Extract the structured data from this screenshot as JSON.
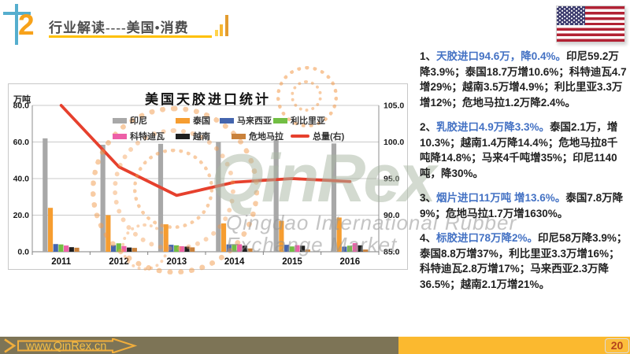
{
  "header": {
    "section_number": "2",
    "title": "行业解读----美国•消费"
  },
  "chart": {
    "title": "美国天胶进口统计",
    "unit_label": "万吨"
  },
  "chart_data": {
    "type": "bar",
    "title": "美国天胶进口统计",
    "categories": [
      "2011",
      "2012",
      "2013",
      "2014",
      "2015",
      "2016"
    ],
    "ylabel": "万吨",
    "left_axis": {
      "min": 0,
      "max": 80,
      "ticks": [
        "0.0",
        "20.0",
        "40.0",
        "60.0",
        "80.0"
      ]
    },
    "right_axis": {
      "min": 85,
      "max": 105,
      "ticks": [
        "85.0",
        "90.0",
        "95.0",
        "100.0",
        "105.0"
      ]
    },
    "grid": true,
    "legend_position": "top-inside",
    "series": [
      {
        "name": "印尼",
        "color": "#A8A8A8",
        "values": [
          62.0,
          58.5,
          59.0,
          60.0,
          61.6,
          59.2
        ]
      },
      {
        "name": "泰国",
        "color": "#F69D30",
        "values": [
          24.0,
          20.0,
          15.0,
          15.5,
          16.9,
          18.7
        ]
      },
      {
        "name": "马来西亚",
        "color": "#4465AE",
        "values": [
          4.2,
          3.6,
          3.8,
          4.0,
          3.8,
          2.8
        ]
      },
      {
        "name": "利比里亚",
        "color": "#72BE44",
        "values": [
          4.0,
          4.6,
          3.5,
          4.0,
          2.9,
          3.3
        ]
      },
      {
        "name": "科特迪瓦",
        "color": "#ED5FA7",
        "values": [
          3.4,
          3.1,
          3.0,
          4.1,
          3.6,
          4.7
        ]
      },
      {
        "name": "越南",
        "color": "#1F1F1F",
        "values": [
          2.5,
          2.3,
          2.8,
          3.3,
          3.3,
          3.5
        ]
      },
      {
        "name": "危地马拉",
        "color": "#C9813B",
        "values": [
          2.2,
          2.1,
          2.4,
          1.8,
          1.2,
          1.2
        ]
      }
    ],
    "line_series": {
      "name": "总量(右)",
      "color": "#E6402D",
      "axis": "right",
      "values": [
        105.0,
        96.6,
        92.7,
        94.5,
        95.0,
        94.6
      ]
    }
  },
  "notes": [
    {
      "num": "1、",
      "lead": "天胶进口94.6万，降0.4%。",
      "body": "印尼59.2万降3.9%；泰国18.7万增10.6%；科特迪瓦4.7增29%；越南3.5万增4.9%；利比里亚3.3万增12%；危地马拉1.2万降2.4%。"
    },
    {
      "num": "2、",
      "lead": "乳胶进口4.9万降3.3%。",
      "body": "泰国2.1万，增10.3%；越南1.4万降14.4%；危地马拉8千吨降14.8%；马来4千吨增35%；印尼1140吨，降30%。"
    },
    {
      "num": "3、",
      "lead": "烟片进口11万吨 增13.6%。",
      "body": "泰国7.8万降9%；危地马拉1.7万增1630%。"
    },
    {
      "num": "4、",
      "lead": "标胶进口78万降2%。",
      "body": "印尼58万降3.9%；泰国8.8万增37%，利比里亚3.3万增16%；科特迪瓦2.8万增17%；马来西亚2.3万降36.5%；越南2.1万增21%。"
    }
  ],
  "watermark": {
    "brand": "QinRex",
    "line1": "Qingdao International Rubber",
    "line2": "Exchange Market"
  },
  "footer": {
    "url": "www.QinRex.cn",
    "page_number": "20"
  },
  "colors": {
    "accent_blue": "#4472C4",
    "title_underline": "#FFC000",
    "cross_blue": "#55AECE",
    "number_orange": "#F7A21A",
    "footer_olive": "#7D7456",
    "footer_yellow": "#FBB92F",
    "page_number_red": "#B5441C",
    "flag_red": "#B22234",
    "flag_blue": "#3C3B6E"
  }
}
